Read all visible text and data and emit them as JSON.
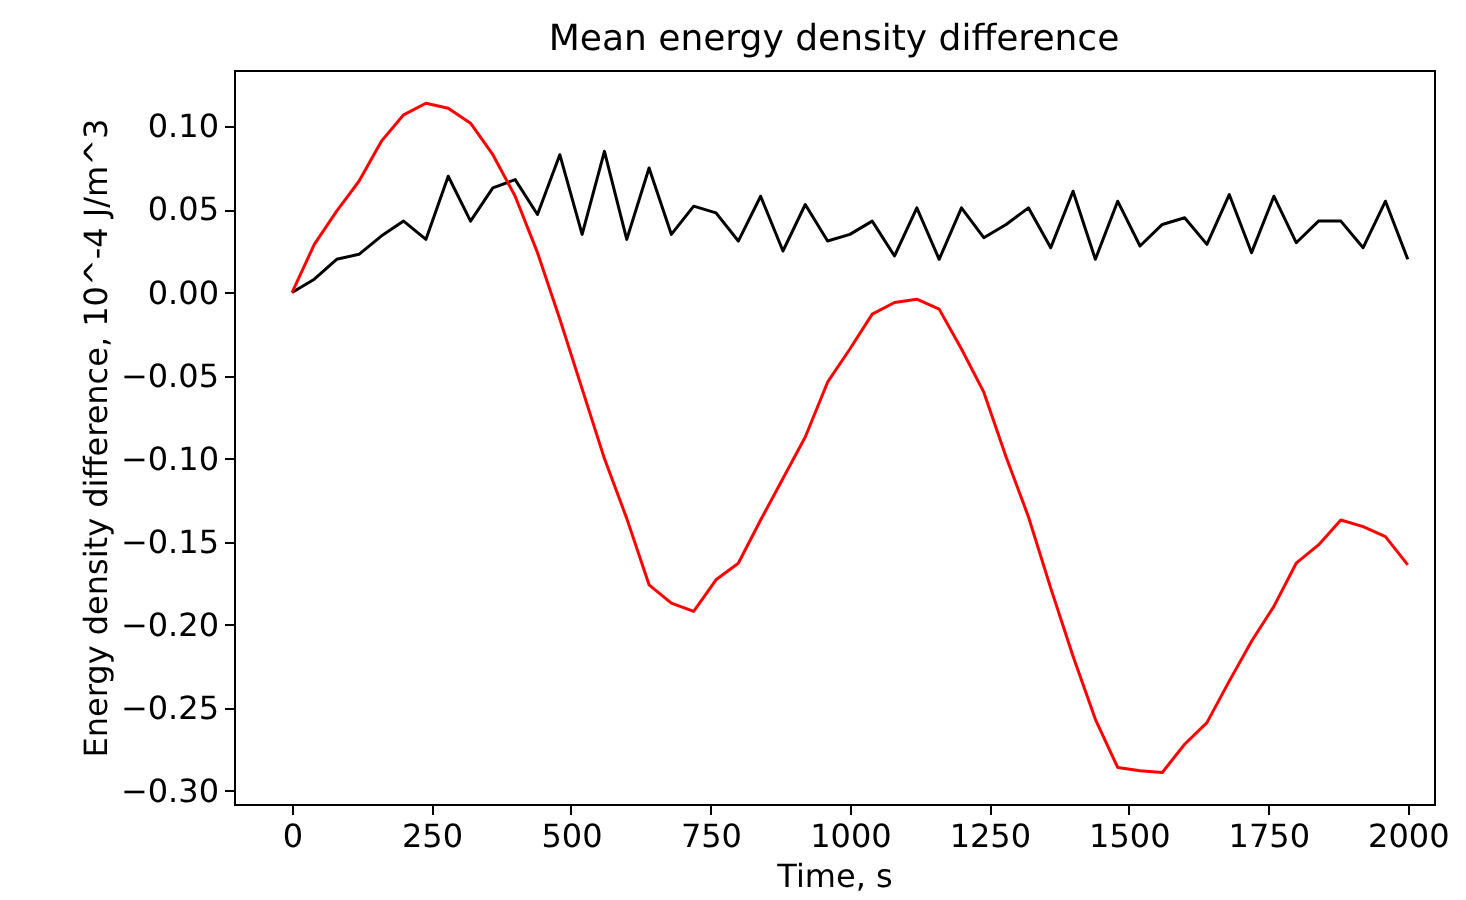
{
  "chart_data": {
    "type": "line",
    "title": "Mean energy density difference",
    "xlabel": "Time, s",
    "ylabel": "Energy density difference, 10^-4 J/m^3",
    "x": [
      0,
      40,
      80,
      120,
      160,
      200,
      240,
      280,
      320,
      360,
      400,
      440,
      480,
      520,
      560,
      600,
      640,
      680,
      720,
      760,
      800,
      840,
      880,
      920,
      960,
      1000,
      1040,
      1080,
      1120,
      1160,
      1200,
      1240,
      1280,
      1320,
      1360,
      1400,
      1440,
      1480,
      1520,
      1560,
      1600,
      1640,
      1680,
      1720,
      1760,
      1800,
      1840,
      1880,
      1920,
      1960,
      2000
    ],
    "series": [
      {
        "color": "#000000",
        "values": [
          0.0,
          0.008,
          0.02,
          0.023,
          0.034,
          0.043,
          0.032,
          0.07,
          0.043,
          0.063,
          0.068,
          0.047,
          0.083,
          0.035,
          0.085,
          0.032,
          0.075,
          0.035,
          0.052,
          0.048,
          0.031,
          0.058,
          0.025,
          0.053,
          0.031,
          0.035,
          0.043,
          0.022,
          0.051,
          0.02,
          0.051,
          0.033,
          0.041,
          0.051,
          0.027,
          0.061,
          0.02,
          0.055,
          0.028,
          0.041,
          0.045,
          0.029,
          0.059,
          0.024,
          0.058,
          0.03,
          0.043,
          0.043,
          0.027,
          0.055,
          0.02
        ]
      },
      {
        "color": "#ff0000",
        "values": [
          0.0,
          0.029,
          0.049,
          0.067,
          0.091,
          0.107,
          0.114,
          0.111,
          0.102,
          0.083,
          0.058,
          0.024,
          -0.016,
          -0.058,
          -0.1,
          -0.136,
          -0.176,
          -0.187,
          -0.192,
          -0.173,
          -0.163,
          -0.137,
          -0.112,
          -0.087,
          -0.054,
          -0.034,
          -0.013,
          -0.006,
          -0.004,
          -0.01,
          -0.034,
          -0.06,
          -0.099,
          -0.135,
          -0.178,
          -0.219,
          -0.257,
          -0.286,
          -0.288,
          -0.289,
          -0.272,
          -0.259,
          -0.234,
          -0.21,
          -0.189,
          -0.163,
          -0.152,
          -0.137,
          -0.141,
          -0.147,
          -0.164
        ]
      }
    ],
    "xlim": [
      -104,
      2047
    ],
    "xticks": [
      0,
      250,
      500,
      750,
      1000,
      1250,
      1500,
      1750,
      2000
    ],
    "ylim": [
      -0.308,
      0.134
    ],
    "yticks": [
      {
        "value": -0.3,
        "label": "−0.30"
      },
      {
        "value": -0.25,
        "label": "−0.25"
      },
      {
        "value": -0.2,
        "label": "−0.20"
      },
      {
        "value": -0.15,
        "label": "−0.15"
      },
      {
        "value": -0.1,
        "label": "−0.10"
      },
      {
        "value": -0.05,
        "label": "−0.05"
      },
      {
        "value": 0,
        "label": "0.00"
      },
      {
        "value": 0.05,
        "label": "0.05"
      },
      {
        "value": 0.1,
        "label": "0.10"
      }
    ],
    "grid": false,
    "marker": "none",
    "line_style": "solid"
  }
}
